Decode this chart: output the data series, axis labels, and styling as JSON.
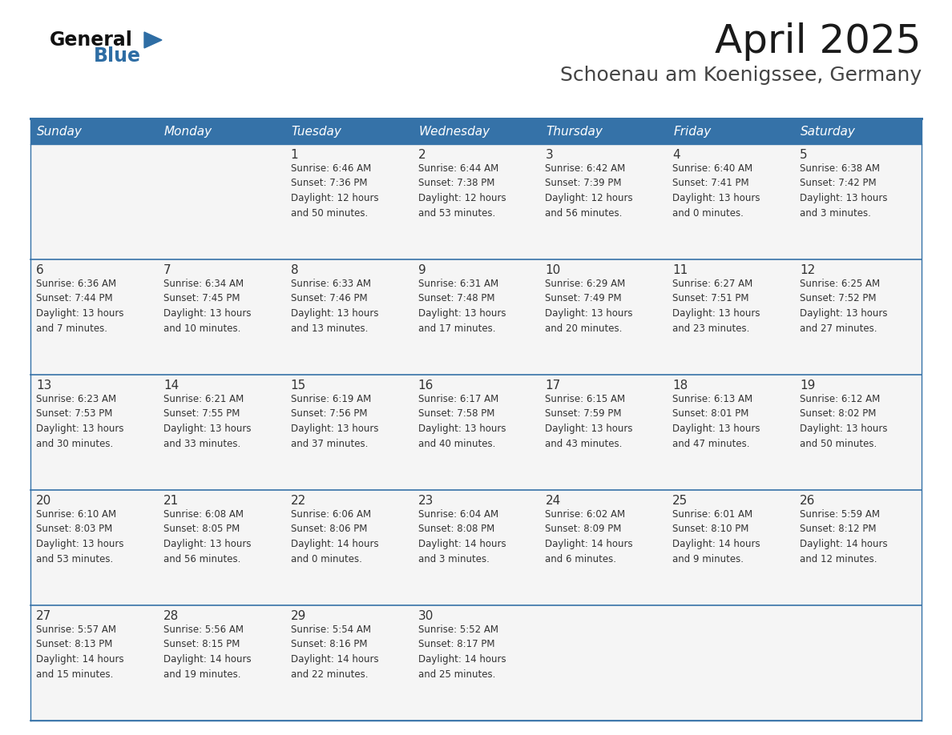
{
  "title": "April 2025",
  "subtitle": "Schoenau am Koenigssee, Germany",
  "header_bg": "#3572a8",
  "header_text": "#ffffff",
  "cell_bg": "#f5f5f5",
  "empty_cell_bg": "#eeeeee",
  "border_color": "#3572a8",
  "text_color": "#333333",
  "day_names": [
    "Sunday",
    "Monday",
    "Tuesday",
    "Wednesday",
    "Thursday",
    "Friday",
    "Saturday"
  ],
  "weeks": [
    [
      {
        "day": "",
        "info": ""
      },
      {
        "day": "",
        "info": ""
      },
      {
        "day": "1",
        "info": "Sunrise: 6:46 AM\nSunset: 7:36 PM\nDaylight: 12 hours\nand 50 minutes."
      },
      {
        "day": "2",
        "info": "Sunrise: 6:44 AM\nSunset: 7:38 PM\nDaylight: 12 hours\nand 53 minutes."
      },
      {
        "day": "3",
        "info": "Sunrise: 6:42 AM\nSunset: 7:39 PM\nDaylight: 12 hours\nand 56 minutes."
      },
      {
        "day": "4",
        "info": "Sunrise: 6:40 AM\nSunset: 7:41 PM\nDaylight: 13 hours\nand 0 minutes."
      },
      {
        "day": "5",
        "info": "Sunrise: 6:38 AM\nSunset: 7:42 PM\nDaylight: 13 hours\nand 3 minutes."
      }
    ],
    [
      {
        "day": "6",
        "info": "Sunrise: 6:36 AM\nSunset: 7:44 PM\nDaylight: 13 hours\nand 7 minutes."
      },
      {
        "day": "7",
        "info": "Sunrise: 6:34 AM\nSunset: 7:45 PM\nDaylight: 13 hours\nand 10 minutes."
      },
      {
        "day": "8",
        "info": "Sunrise: 6:33 AM\nSunset: 7:46 PM\nDaylight: 13 hours\nand 13 minutes."
      },
      {
        "day": "9",
        "info": "Sunrise: 6:31 AM\nSunset: 7:48 PM\nDaylight: 13 hours\nand 17 minutes."
      },
      {
        "day": "10",
        "info": "Sunrise: 6:29 AM\nSunset: 7:49 PM\nDaylight: 13 hours\nand 20 minutes."
      },
      {
        "day": "11",
        "info": "Sunrise: 6:27 AM\nSunset: 7:51 PM\nDaylight: 13 hours\nand 23 minutes."
      },
      {
        "day": "12",
        "info": "Sunrise: 6:25 AM\nSunset: 7:52 PM\nDaylight: 13 hours\nand 27 minutes."
      }
    ],
    [
      {
        "day": "13",
        "info": "Sunrise: 6:23 AM\nSunset: 7:53 PM\nDaylight: 13 hours\nand 30 minutes."
      },
      {
        "day": "14",
        "info": "Sunrise: 6:21 AM\nSunset: 7:55 PM\nDaylight: 13 hours\nand 33 minutes."
      },
      {
        "day": "15",
        "info": "Sunrise: 6:19 AM\nSunset: 7:56 PM\nDaylight: 13 hours\nand 37 minutes."
      },
      {
        "day": "16",
        "info": "Sunrise: 6:17 AM\nSunset: 7:58 PM\nDaylight: 13 hours\nand 40 minutes."
      },
      {
        "day": "17",
        "info": "Sunrise: 6:15 AM\nSunset: 7:59 PM\nDaylight: 13 hours\nand 43 minutes."
      },
      {
        "day": "18",
        "info": "Sunrise: 6:13 AM\nSunset: 8:01 PM\nDaylight: 13 hours\nand 47 minutes."
      },
      {
        "day": "19",
        "info": "Sunrise: 6:12 AM\nSunset: 8:02 PM\nDaylight: 13 hours\nand 50 minutes."
      }
    ],
    [
      {
        "day": "20",
        "info": "Sunrise: 6:10 AM\nSunset: 8:03 PM\nDaylight: 13 hours\nand 53 minutes."
      },
      {
        "day": "21",
        "info": "Sunrise: 6:08 AM\nSunset: 8:05 PM\nDaylight: 13 hours\nand 56 minutes."
      },
      {
        "day": "22",
        "info": "Sunrise: 6:06 AM\nSunset: 8:06 PM\nDaylight: 14 hours\nand 0 minutes."
      },
      {
        "day": "23",
        "info": "Sunrise: 6:04 AM\nSunset: 8:08 PM\nDaylight: 14 hours\nand 3 minutes."
      },
      {
        "day": "24",
        "info": "Sunrise: 6:02 AM\nSunset: 8:09 PM\nDaylight: 14 hours\nand 6 minutes."
      },
      {
        "day": "25",
        "info": "Sunrise: 6:01 AM\nSunset: 8:10 PM\nDaylight: 14 hours\nand 9 minutes."
      },
      {
        "day": "26",
        "info": "Sunrise: 5:59 AM\nSunset: 8:12 PM\nDaylight: 14 hours\nand 12 minutes."
      }
    ],
    [
      {
        "day": "27",
        "info": "Sunrise: 5:57 AM\nSunset: 8:13 PM\nDaylight: 14 hours\nand 15 minutes."
      },
      {
        "day": "28",
        "info": "Sunrise: 5:56 AM\nSunset: 8:15 PM\nDaylight: 14 hours\nand 19 minutes."
      },
      {
        "day": "29",
        "info": "Sunrise: 5:54 AM\nSunset: 8:16 PM\nDaylight: 14 hours\nand 22 minutes."
      },
      {
        "day": "30",
        "info": "Sunrise: 5:52 AM\nSunset: 8:17 PM\nDaylight: 14 hours\nand 25 minutes."
      },
      {
        "day": "",
        "info": ""
      },
      {
        "day": "",
        "info": ""
      },
      {
        "day": "",
        "info": ""
      }
    ]
  ],
  "logo_text1": "General",
  "logo_text2": "Blue",
  "logo_color1": "#111111",
  "logo_color2": "#2e6da4",
  "logo_triangle_color": "#2e6da4",
  "title_fontsize": 36,
  "subtitle_fontsize": 18,
  "header_fontsize": 11,
  "day_num_fontsize": 11,
  "info_fontsize": 8.5
}
